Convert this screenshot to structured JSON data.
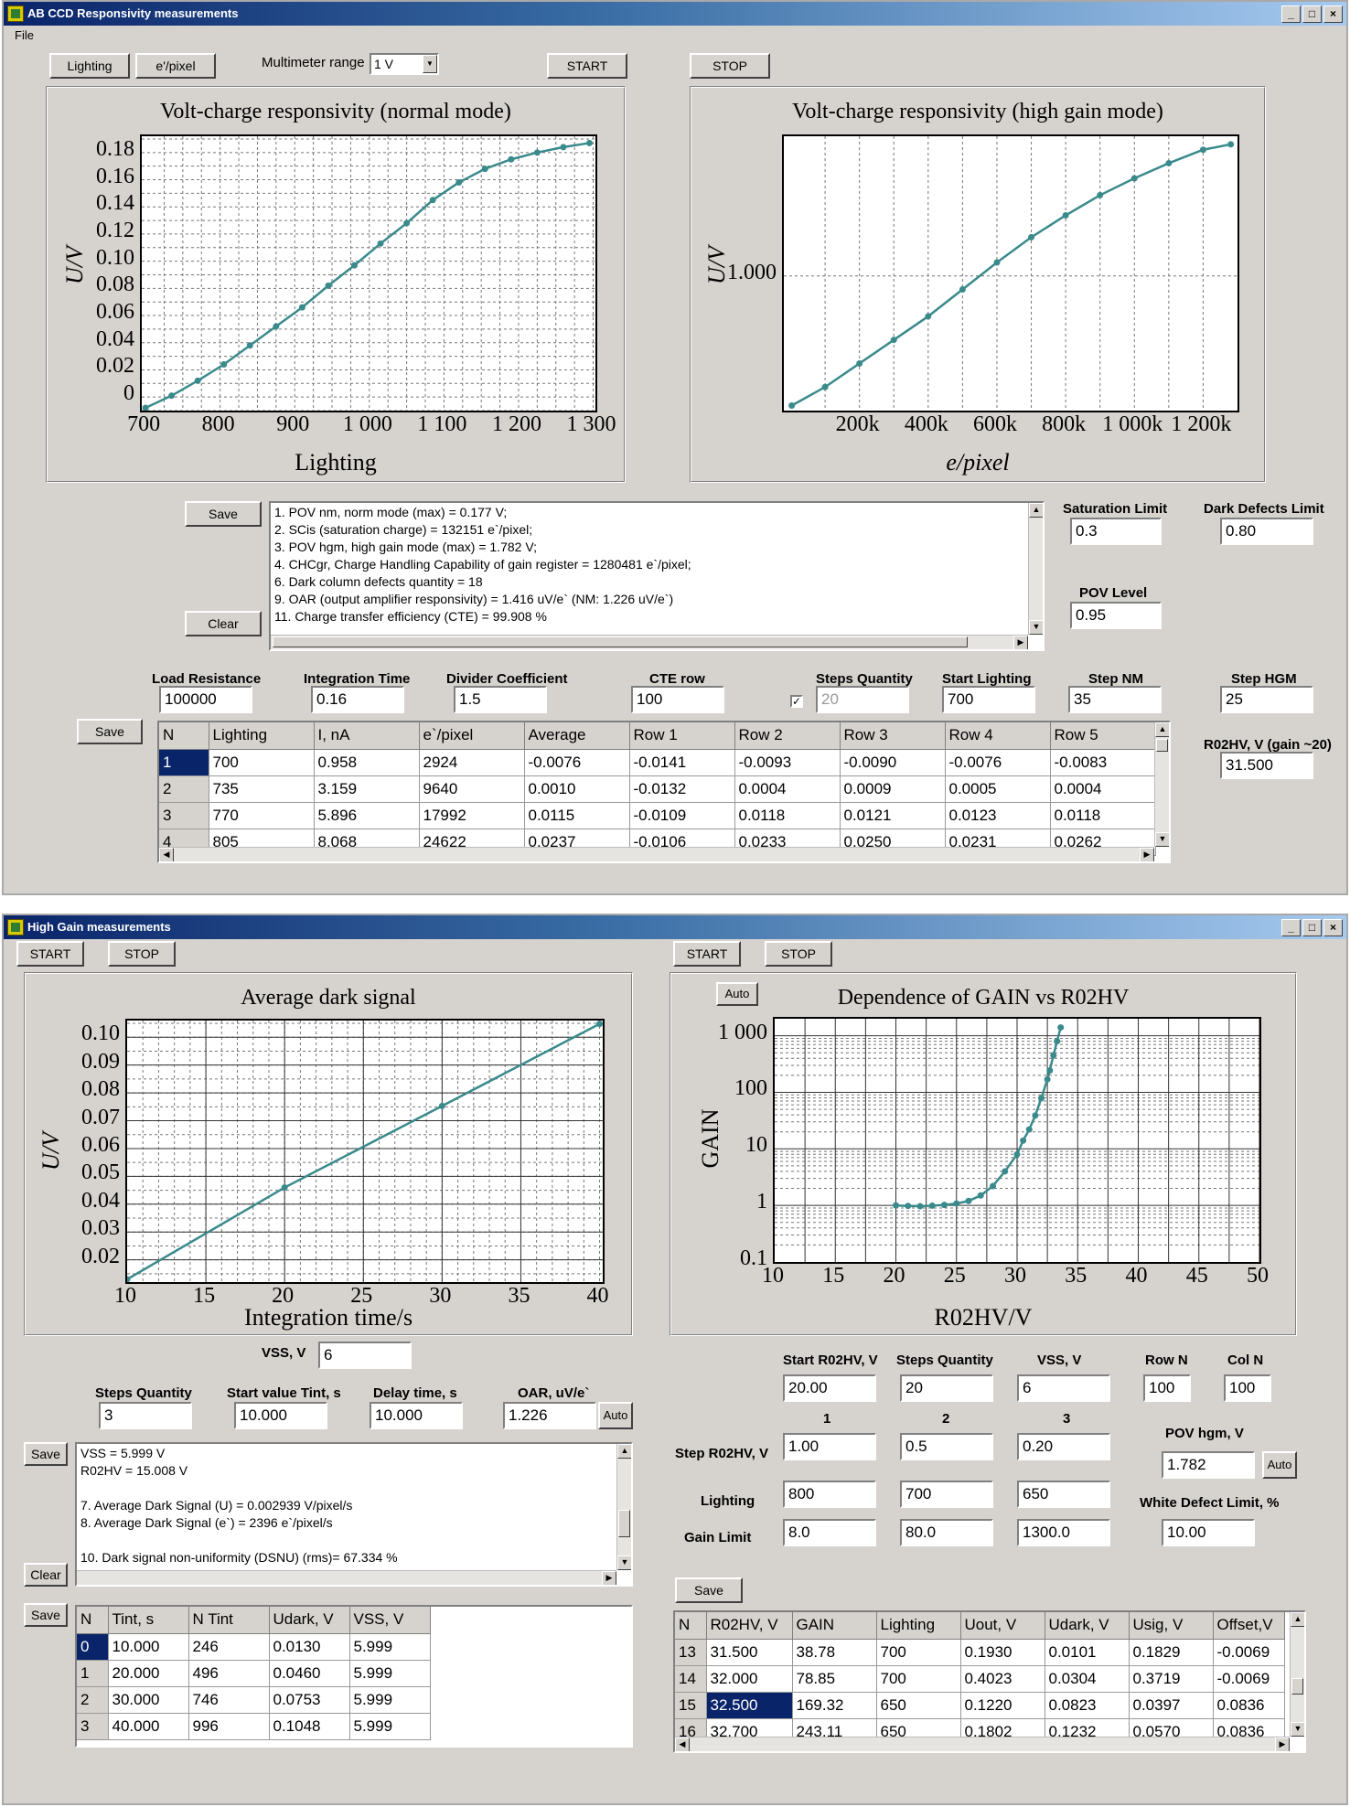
{
  "window1": {
    "title": "AB CCD Responsivity measurements",
    "menu": [
      "File"
    ],
    "buttons": {
      "lighting": "Lighting",
      "epixel": "e'/pixel",
      "start": "START",
      "stop": "STOP",
      "save_results": "Save",
      "clear_results": "Clear",
      "save_table": "Save"
    },
    "multimeter_label": "Multimeter range",
    "multimeter_value": "1 V",
    "results": [
      "1. POV nm, norm mode (max) =  0.177 V;",
      "2. SCis (saturation charge) = 132151 e`/pixel;",
      "3. POV hgm, high gain mode (max) =  1.782 V;",
      "4. CHCgr, Charge Handling Capability of gain register =  1280481 e`/pixel;",
      "6. Dark column defects quantity = 18",
      "9. OAR (output amplifier responsivity) = 1.416 uV/e` (NM: 1.226 uV/e`)",
      "11. Charge transfer efficiency (CTE) = 99.908 %"
    ],
    "params": {
      "saturation_limit_label": "Saturation Limit",
      "saturation_limit": "0.3",
      "dark_defects_label": "Dark Defects Limit",
      "dark_defects": "0.80",
      "pov_level_label": "POV Level",
      "pov_level": "0.95",
      "load_resistance_label": "Load Resistance",
      "load_resistance": "100000",
      "integration_time_label": "Integration Time",
      "integration_time": "0.16",
      "divider_label": "Divider Coefficient",
      "divider": "1.5",
      "cte_row_label": "CTE row",
      "cte_row": "100",
      "steps_quantity_label": "Steps Quantity",
      "steps_quantity": "20",
      "start_lighting_label": "Start Lighting",
      "start_lighting": "700",
      "step_nm_label": "Step NM",
      "step_nm": "35",
      "step_hgm_label": "Step HGM",
      "step_hgm": "25",
      "r02hv_label": "R02HV, V (gain ~20)",
      "r02hv": "31.500"
    },
    "table": {
      "headers": [
        "N",
        "Lighting",
        "I, nA",
        "e`/pixel",
        "Average",
        "Row 1",
        "Row 2",
        "Row 3",
        "Row 4",
        "Row 5"
      ],
      "rows": [
        [
          "1",
          "700",
          "0.958",
          "2924",
          "-0.0076",
          "-0.0141",
          "-0.0093",
          "-0.0090",
          "-0.0076",
          "-0.0083"
        ],
        [
          "2",
          "735",
          "3.159",
          "9640",
          "0.0010",
          "-0.0132",
          "0.0004",
          "0.0009",
          "0.0005",
          "0.0004"
        ],
        [
          "3",
          "770",
          "5.896",
          "17992",
          "0.0115",
          "-0.0109",
          "0.0118",
          "0.0121",
          "0.0123",
          "0.0118"
        ],
        [
          "4",
          "805",
          "8.068",
          "24622",
          "0.0237",
          "-0.0106",
          "0.0233",
          "0.0250",
          "0.0231",
          "0.0262"
        ]
      ]
    }
  },
  "window2": {
    "title": "High Gain measurements",
    "buttons": {
      "start_left": "START",
      "stop_left": "STOP",
      "start_right": "START",
      "stop_right": "STOP",
      "auto_chart": "Auto",
      "auto_oar": "Auto",
      "auto_pov": "Auto",
      "save_memo": "Save",
      "clear_memo": "Clear",
      "save_left_table": "Save",
      "save_right_table": "Save"
    },
    "vss_label": "VSS, V",
    "vss": "6",
    "left_params": {
      "steps_quantity_label": "Steps Quantity",
      "steps_quantity": "3",
      "start_tint_label": "Start value Tint, s",
      "start_tint": "10.000",
      "delay_label": "Delay time, s",
      "delay": "10.000",
      "oar_label": "OAR, uV/e`",
      "oar": "1.226"
    },
    "memo": [
      "VSS = 5.999 V",
      "R02HV = 15.008 V",
      "",
      "7. Average Dark Signal (U) = 0.002939 V/pixel/s",
      "8. Average Dark Signal (e`) = 2396 e`/pixel/s",
      "",
      "10. Dark signal non-uniformity (DSNU) (rms)= 67.334 %"
    ],
    "left_table": {
      "headers": [
        "N",
        "Tint, s",
        "N Tint",
        "Udark, V",
        "VSS, V"
      ],
      "rows": [
        [
          "0",
          "10.000",
          "246",
          "0.0130",
          "5.999"
        ],
        [
          "1",
          "20.000",
          "496",
          "0.0460",
          "5.999"
        ],
        [
          "2",
          "30.000",
          "746",
          "0.0753",
          "5.999"
        ],
        [
          "3",
          "40.000",
          "996",
          "0.1048",
          "5.999"
        ]
      ]
    },
    "right_params": {
      "start_r02hv_label": "Start R02HV, V",
      "start_r02hv": "20.00",
      "steps_label": "Steps Quantity",
      "steps": "20",
      "vss_label": "VSS, V",
      "vss": "6",
      "row_n_label": "Row N",
      "row_n": "100",
      "col_n_label": "Col N",
      "col_n": "100",
      "col_headers": [
        "1",
        "2",
        "3"
      ],
      "step_label": "Step R02HV, V",
      "step": [
        "1.00",
        "0.5",
        "0.20"
      ],
      "lighting_label": "Lighting",
      "lighting": [
        "800",
        "700",
        "650"
      ],
      "gain_limit_label": "Gain Limit",
      "gain_limit": [
        "8.0",
        "80.0",
        "1300.0"
      ],
      "pov_hgm_label": "POV hgm,  V",
      "pov_hgm": "1.782",
      "white_defect_label": "White Defect Limit, %",
      "white_defect": "10.00"
    },
    "right_table": {
      "headers": [
        "N",
        "R02HV, V",
        "GAIN",
        "Lighting",
        "Uout, V",
        "Udark, V",
        "Usig, V",
        "Offset,V"
      ],
      "rows": [
        [
          "13",
          "31.500",
          "38.78",
          "700",
          "0.1930",
          "0.0101",
          "0.1829",
          "-0.0069"
        ],
        [
          "14",
          "32.000",
          "78.85",
          "700",
          "0.4023",
          "0.0304",
          "0.3719",
          "-0.0069"
        ],
        [
          "15",
          "32.500",
          "169.32",
          "650",
          "0.1220",
          "0.0823",
          "0.0397",
          "0.0836"
        ],
        [
          "16",
          "32.700",
          "243.11",
          "650",
          "0.1802",
          "0.1232",
          "0.0570",
          "0.0836"
        ]
      ]
    }
  },
  "chart_data": [
    {
      "type": "line",
      "title": "Volt-charge responsivity (normal mode)",
      "xlabel": "Lighting",
      "ylabel": "U/V",
      "xlim": [
        700,
        1300
      ],
      "ylim": [
        -0.01,
        0.19
      ],
      "x_ticks": [
        "700",
        "800",
        "900",
        "1 000",
        "1 100",
        "1 200",
        "1 300"
      ],
      "y_ticks": [
        "0",
        "0.02",
        "0.04",
        "0.06",
        "0.08",
        "0.10",
        "0.12",
        "0.14",
        "0.16",
        "0.18"
      ],
      "x": [
        700,
        735,
        770,
        805,
        840,
        875,
        910,
        945,
        980,
        1015,
        1050,
        1085,
        1120,
        1155,
        1190,
        1225,
        1260,
        1295
      ],
      "y": [
        -0.008,
        0.001,
        0.012,
        0.024,
        0.038,
        0.052,
        0.066,
        0.082,
        0.097,
        0.113,
        0.128,
        0.145,
        0.158,
        0.168,
        0.175,
        0.18,
        0.184,
        0.187
      ],
      "grid": true
    },
    {
      "type": "line",
      "title": "Volt-charge responsivity (high gain mode)",
      "xlabel": "e/pixel",
      "ylabel": "U/V",
      "x_ticks": [
        "200k",
        "400k",
        "600k",
        "800k",
        "1 000k",
        "1 200k"
      ],
      "y_ticks": [
        "1.000"
      ],
      "x": [
        2924,
        100000,
        200000,
        300000,
        400000,
        500000,
        600000,
        700000,
        800000,
        900000,
        1000000,
        1100000,
        1200000,
        1280481
      ],
      "y": [
        0.23,
        0.34,
        0.48,
        0.62,
        0.76,
        0.92,
        1.08,
        1.23,
        1.36,
        1.48,
        1.58,
        1.67,
        1.75,
        1.782
      ],
      "grid": true
    },
    {
      "type": "line",
      "title": "Average dark signal",
      "xlabel": "Integration time/s",
      "ylabel": "U/V",
      "xlim": [
        10,
        40
      ],
      "ylim": [
        0.012,
        0.106
      ],
      "x_ticks": [
        "10",
        "15",
        "20",
        "25",
        "30",
        "35",
        "40"
      ],
      "y_ticks": [
        "0.02",
        "0.03",
        "0.04",
        "0.05",
        "0.06",
        "0.07",
        "0.08",
        "0.09",
        "0.10"
      ],
      "x": [
        10,
        20,
        30,
        40
      ],
      "y": [
        0.013,
        0.046,
        0.0753,
        0.1048
      ],
      "grid": true
    },
    {
      "type": "line",
      "title": "Dependence of GAIN vs R02HV",
      "xlabel": "R02HV/V",
      "ylabel": "GAIN",
      "xlim": [
        10,
        50
      ],
      "ylim": [
        0.1,
        2000
      ],
      "yscale": "log",
      "x_ticks": [
        "10",
        "15",
        "20",
        "25",
        "30",
        "35",
        "40",
        "45",
        "50"
      ],
      "y_ticks": [
        "0.1",
        "1",
        "10",
        "100",
        "1 000"
      ],
      "x": [
        20,
        21,
        22,
        23,
        24,
        25,
        26,
        27,
        28,
        29,
        30,
        30.5,
        31,
        31.5,
        32,
        32.5,
        32.7,
        33,
        33.3,
        33.6
      ],
      "y": [
        1.0,
        0.98,
        0.97,
        0.99,
        1.02,
        1.08,
        1.2,
        1.5,
        2.2,
        4.0,
        8.0,
        14,
        22,
        38.78,
        78.85,
        169.32,
        243.11,
        450,
        800,
        1400
      ],
      "grid": true
    }
  ]
}
